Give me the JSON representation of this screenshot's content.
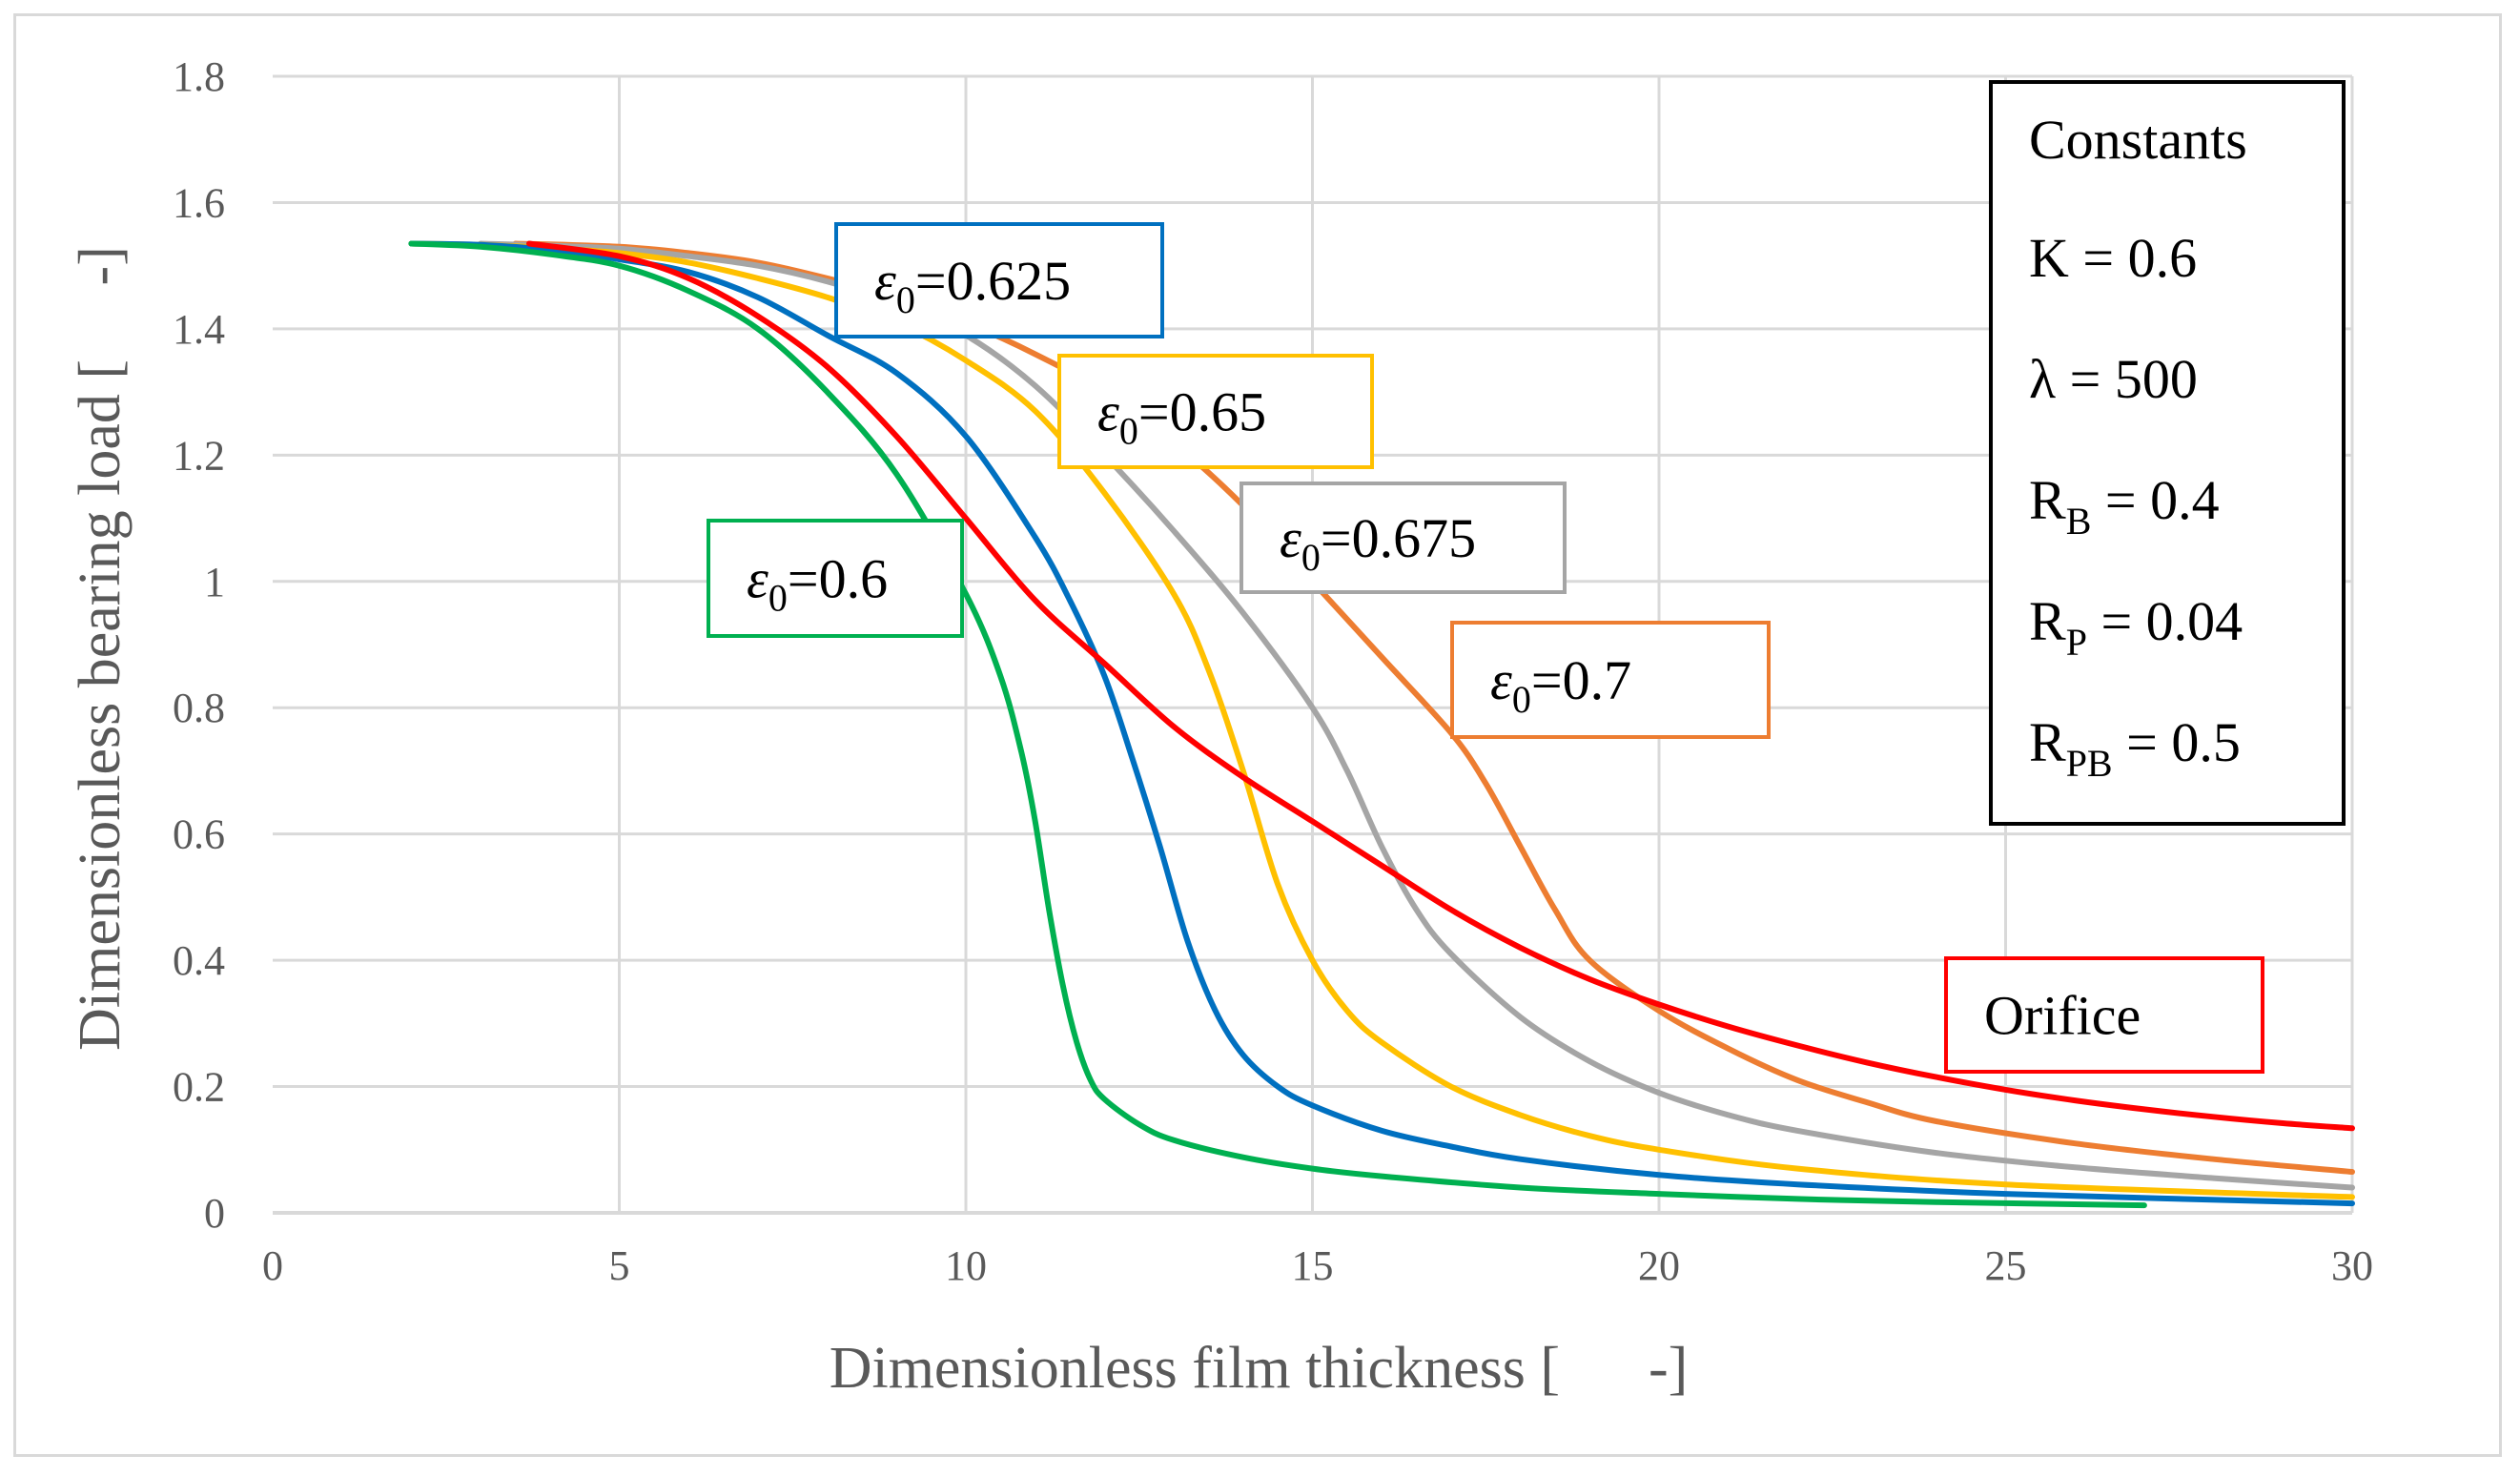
{
  "chart_data": {
    "type": "line",
    "xlabel": "Dimensionless film thickness [      -]",
    "ylabel": "Dimensionless bearing load [     -]",
    "xlim": [
      0,
      30
    ],
    "ylim": [
      0,
      1.8
    ],
    "xticks": [
      0,
      5,
      10,
      15,
      20,
      25,
      30
    ],
    "xtick_labels": [
      "0",
      "5",
      "10",
      "15",
      "20",
      "25",
      "30"
    ],
    "yticks": [
      0,
      0.2,
      0.4,
      0.6,
      0.8,
      1,
      1.2,
      1.4,
      1.6,
      1.8
    ],
    "ytick_labels": [
      "0",
      "0.2",
      "0.4",
      "0.6",
      "0.8",
      "1",
      "1.2",
      "1.4",
      "1.6",
      "1.8"
    ],
    "grid": true,
    "series": [
      {
        "name": "Orifice",
        "color": "#ff0000",
        "x": [
          3.7,
          5,
          6,
          7,
          8,
          9,
          10,
          11,
          12,
          13,
          14,
          15,
          16,
          17,
          18,
          19,
          20,
          21,
          22,
          23,
          24,
          25,
          26,
          27,
          28,
          29,
          30
        ],
        "y": [
          1.535,
          1.515,
          1.48,
          1.42,
          1.34,
          1.23,
          1.1,
          0.97,
          0.87,
          0.77,
          0.69,
          0.62,
          0.55,
          0.48,
          0.42,
          0.37,
          0.33,
          0.295,
          0.265,
          0.238,
          0.215,
          0.195,
          0.178,
          0.164,
          0.152,
          0.142,
          0.134
        ]
      },
      {
        "name": "ε0=0.6",
        "color": "#00b050",
        "x": [
          2,
          3,
          4,
          5,
          6,
          7,
          8,
          9,
          10,
          10.5,
          10.8,
          11,
          11.2,
          11.4,
          11.6,
          11.8,
          12,
          12.5,
          13,
          14,
          15,
          16,
          18,
          20,
          22,
          24,
          27
        ],
        "y": [
          1.535,
          1.53,
          1.518,
          1.5,
          1.46,
          1.4,
          1.3,
          1.17,
          0.98,
          0.85,
          0.73,
          0.62,
          0.48,
          0.36,
          0.27,
          0.21,
          0.18,
          0.14,
          0.115,
          0.088,
          0.07,
          0.058,
          0.04,
          0.03,
          0.022,
          0.017,
          0.012
        ]
      },
      {
        "name": "ε0=0.625",
        "color": "#0070c0",
        "x": [
          2,
          3,
          4,
          5,
          6,
          7,
          8,
          9,
          10,
          11,
          11.5,
          12,
          12.4,
          12.8,
          13.2,
          13.6,
          14,
          14.5,
          15,
          16,
          17,
          18,
          20,
          22,
          25,
          30
        ],
        "y": [
          1.535,
          1.533,
          1.525,
          1.51,
          1.49,
          1.45,
          1.39,
          1.33,
          1.23,
          1.07,
          0.97,
          0.85,
          0.72,
          0.58,
          0.43,
          0.32,
          0.25,
          0.2,
          0.17,
          0.13,
          0.105,
          0.085,
          0.06,
          0.045,
          0.03,
          0.015
        ]
      },
      {
        "name": "ε0=0.65",
        "color": "#ffc000",
        "x": [
          2,
          3,
          4,
          5,
          6,
          7,
          8,
          9,
          10,
          11,
          12,
          13,
          13.5,
          14,
          14.5,
          15,
          15.5,
          16,
          17,
          18,
          19,
          20,
          22,
          25,
          30
        ],
        "y": [
          1.535,
          1.533,
          1.528,
          1.52,
          1.505,
          1.48,
          1.45,
          1.41,
          1.35,
          1.27,
          1.14,
          0.98,
          0.86,
          0.7,
          0.52,
          0.4,
          0.32,
          0.27,
          0.2,
          0.155,
          0.122,
          0.1,
          0.07,
          0.045,
          0.025
        ]
      },
      {
        "name": "ε0=0.675",
        "color": "#a5a5a5",
        "x": [
          3,
          4,
          5,
          6,
          7,
          8,
          9,
          10,
          11,
          12,
          13,
          14,
          15,
          15.5,
          16,
          16.5,
          17,
          18,
          19,
          20,
          21,
          22,
          24,
          26,
          28,
          30
        ],
        "y": [
          1.535,
          1.532,
          1.527,
          1.515,
          1.5,
          1.475,
          1.44,
          1.39,
          1.31,
          1.2,
          1.08,
          0.95,
          0.8,
          0.7,
          0.58,
          0.48,
          0.41,
          0.31,
          0.24,
          0.19,
          0.155,
          0.13,
          0.095,
          0.072,
          0.055,
          0.04
        ]
      },
      {
        "name": "ε0=0.7",
        "color": "#ed7d31",
        "x": [
          3.5,
          5,
          6,
          7,
          8,
          9,
          10,
          11,
          12,
          13,
          14,
          15,
          16,
          17,
          17.5,
          18,
          18.5,
          19,
          20,
          21,
          22,
          23,
          24,
          26,
          28,
          30
        ],
        "y": [
          1.535,
          1.53,
          1.52,
          1.505,
          1.48,
          1.45,
          1.41,
          1.36,
          1.3,
          1.22,
          1.12,
          1.0,
          0.88,
          0.76,
          0.68,
          0.58,
          0.48,
          0.4,
          0.32,
          0.26,
          0.21,
          0.175,
          0.145,
          0.11,
          0.085,
          0.065
        ]
      }
    ],
    "annotations": [
      {
        "sym": "ε",
        "sub": "0",
        "text": "=0.625",
        "border": "#0070c0"
      },
      {
        "sym": "ε",
        "sub": "0",
        "text": "=0.65",
        "border": "#ffc000"
      },
      {
        "sym": "ε",
        "sub": "0",
        "text": "=0.675",
        "border": "#a5a5a5"
      },
      {
        "sym": "ε",
        "sub": "0",
        "text": "=0.6",
        "border": "#00b050"
      },
      {
        "sym": "ε",
        "sub": "0",
        "text": "=0.7",
        "border": "#ed7d31"
      },
      {
        "sym": "",
        "sub": "",
        "text": "Orifice",
        "border": "#ff0000"
      }
    ],
    "constants": {
      "title": "Constants",
      "rows": [
        {
          "name": "K",
          "sub": "",
          "value": " = 0.6"
        },
        {
          "name": "λ",
          "sub": "",
          "value": " = 500"
        },
        {
          "name": "R",
          "sub": "B",
          "value": " = 0.4"
        },
        {
          "name": "R",
          "sub": "P",
          "value": " = 0.04"
        },
        {
          "name": "R",
          "sub": "PB",
          "value": " = 0.5"
        }
      ]
    }
  }
}
